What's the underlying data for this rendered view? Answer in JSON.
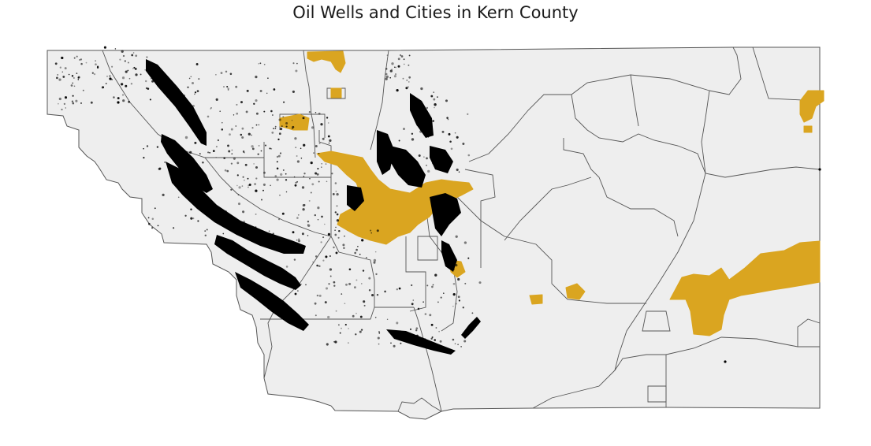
{
  "map": {
    "title": "Oil Wells and Cities in Kern County",
    "colors": {
      "county_fill": "#eeeeee",
      "boundary_stroke": "#555555",
      "city_fill": "#daa520",
      "well_color": "#000000",
      "background": "#ffffff"
    },
    "layers": [
      "census-tract-boundaries",
      "cities",
      "oil-wells"
    ]
  }
}
